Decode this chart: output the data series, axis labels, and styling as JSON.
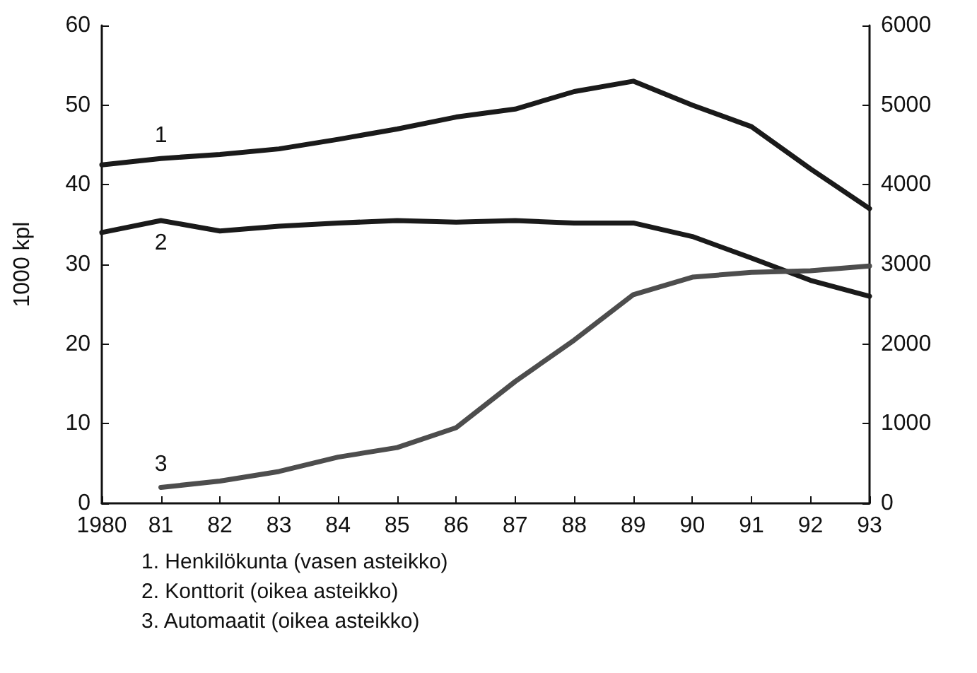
{
  "chart_data": {
    "type": "line",
    "ylabel": "1000 kpl",
    "x": [
      1980,
      1981,
      1982,
      1983,
      1984,
      1985,
      1986,
      1987,
      1988,
      1989,
      1990,
      1991,
      1992,
      1993
    ],
    "series": [
      {
        "name": "1",
        "color": "#1a1a1a",
        "values": [
          42.5,
          43.3,
          43.8,
          44.5,
          45.7,
          47,
          48.5,
          49.5,
          51.7,
          53,
          50,
          47.3,
          42,
          37
        ]
      },
      {
        "name": "2",
        "color": "#1a1a1a",
        "axis": "y2",
        "values": [
          3400,
          3550,
          3420,
          3480,
          3520,
          3550,
          3530,
          3550,
          3520,
          3520,
          3350,
          3080,
          2800,
          2600
        ]
      },
      {
        "name": "3",
        "color": "#4d4d4d",
        "axis": "y2",
        "values": [
          null,
          200,
          280,
          400,
          580,
          700,
          950,
          1530,
          2050,
          2620,
          2840,
          2900,
          2920,
          2980
        ]
      }
    ],
    "xlim": [
      1980,
      1993
    ],
    "xticks": [
      {
        "value": 1980,
        "label": "1980"
      },
      {
        "value": 1981,
        "label": "81"
      },
      {
        "value": 1982,
        "label": "82"
      },
      {
        "value": 1983,
        "label": "83"
      },
      {
        "value": 1984,
        "label": "84"
      },
      {
        "value": 1985,
        "label": "85"
      },
      {
        "value": 1986,
        "label": "86"
      },
      {
        "value": 1987,
        "label": "87"
      },
      {
        "value": 1988,
        "label": "88"
      },
      {
        "value": 1989,
        "label": "89"
      },
      {
        "value": 1990,
        "label": "90"
      },
      {
        "value": 1991,
        "label": "91"
      },
      {
        "value": 1992,
        "label": "92"
      },
      {
        "value": 1993,
        "label": "93"
      }
    ],
    "ylim": [
      0,
      60
    ],
    "yticks": [
      0,
      10,
      20,
      30,
      40,
      50,
      60
    ],
    "y2lim": [
      0,
      6000
    ],
    "y2ticks": [
      0,
      1000,
      2000,
      3000,
      4000,
      5000,
      6000
    ],
    "grid": false,
    "legend": false,
    "marker": "none",
    "line_style": "solid",
    "annotations": [
      "1. Henkilökunta (vasen asteikko)",
      "2. Konttorit (oikea asteikko)",
      "3. Automaatit (oikea asteikko)"
    ]
  }
}
